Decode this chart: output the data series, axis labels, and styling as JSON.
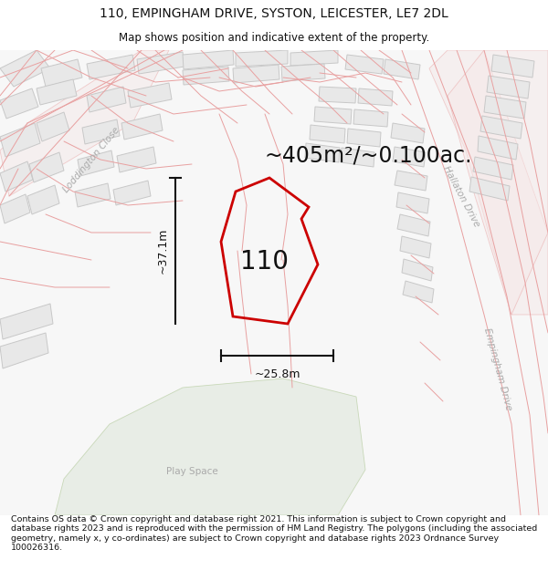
{
  "title": "110, EMPINGHAM DRIVE, SYSTON, LEICESTER, LE7 2DL",
  "subtitle": "Map shows position and indicative extent of the property.",
  "footer": "Contains OS data © Crown copyright and database right 2021. This information is subject to Crown copyright and database rights 2023 and is reproduced with the permission of HM Land Registry. The polygons (including the associated geometry, namely x, y co-ordinates) are subject to Crown copyright and database rights 2023 Ordnance Survey 100026316.",
  "area_label": "~405m²/~0.100ac.",
  "width_label": "~25.8m",
  "height_label": "~37.1m",
  "plot_number": "110",
  "map_bg": "#f7f7f7",
  "road_line_color": "#e8a0a0",
  "building_fill": "#e8e8e8",
  "building_outline": "#c8c8c8",
  "green_fill": "#e8ede6",
  "green_outline": "#c8d8b8",
  "plot_outline": "#cc0000",
  "plot_fill": "none",
  "measurement_color": "#111111",
  "road_label_color": "#999999",
  "title_fontsize": 10,
  "subtitle_fontsize": 8.5,
  "footer_fontsize": 6.8,
  "area_fontsize": 17,
  "plot_num_fontsize": 20
}
